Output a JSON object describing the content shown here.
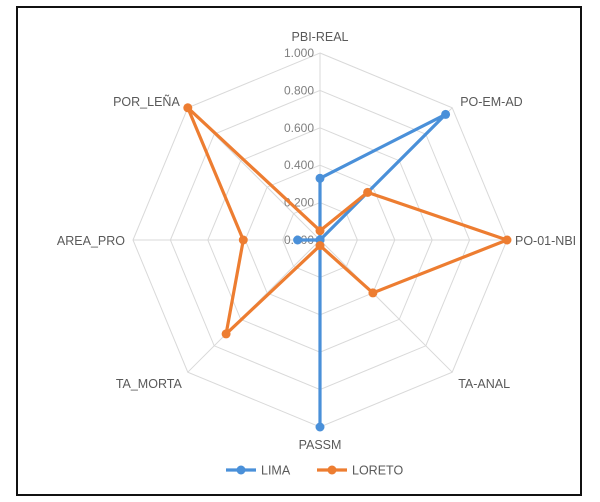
{
  "chart_data": {
    "type": "radar",
    "axes": [
      "PBI-REAL",
      "PO-EM-AD",
      "PO-01-NBI",
      "TA-ANAL",
      "PASSM",
      "TA_MORTA",
      "AREA_PRO",
      "POR_LEÑA"
    ],
    "rlim": [
      0,
      1
    ],
    "ticks": [
      "0.000",
      "0.200",
      "0.400",
      "0.600",
      "0.800",
      "1.000"
    ],
    "grid": true,
    "legend_position": "bottom",
    "series": [
      {
        "name": "LIMA",
        "color": "#4A90D9",
        "values": [
          0.33,
          0.95,
          0.0,
          0.0,
          1.0,
          0.0,
          0.12,
          0.0
        ]
      },
      {
        "name": "LORETO",
        "color": "#ED7D31",
        "values": [
          0.05,
          0.36,
          1.0,
          0.4,
          0.03,
          0.71,
          0.41,
          1.0
        ]
      }
    ]
  }
}
